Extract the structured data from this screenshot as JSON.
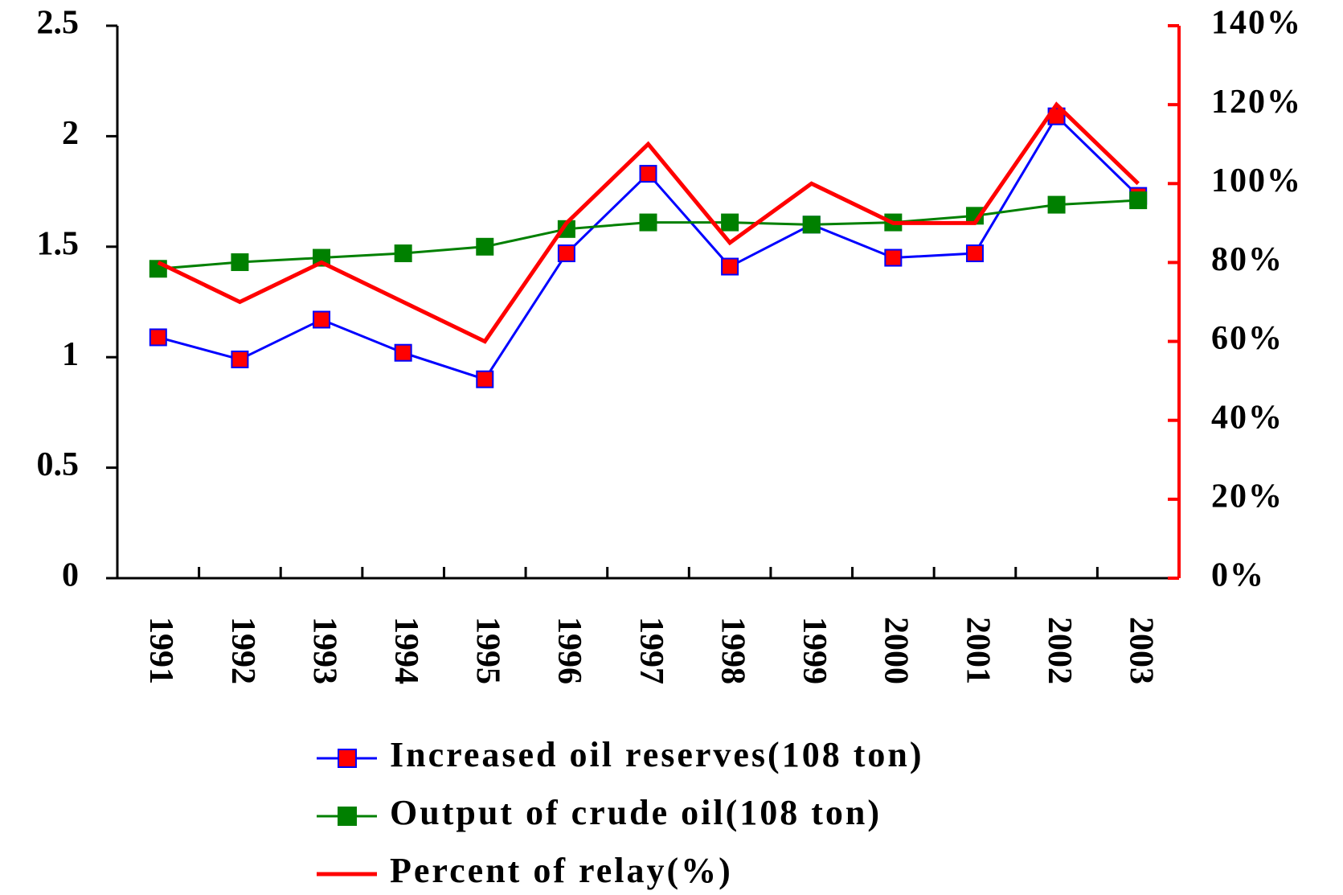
{
  "chart_data": {
    "type": "line",
    "categories": [
      "1991",
      "1992",
      "1993",
      "1994",
      "1995",
      "1996",
      "1997",
      "1998",
      "1999",
      "2000",
      "2001",
      "2002",
      "2003"
    ],
    "series": [
      {
        "name": "Increased oil reserves(108 ton)",
        "color": "#0000ff",
        "marker_color": "#ff0000",
        "values": [
          1.09,
          0.99,
          1.17,
          1.02,
          0.9,
          1.47,
          1.83,
          1.41,
          1.6,
          1.45,
          1.47,
          2.09,
          1.73
        ]
      },
      {
        "name": "Output of crude oil(108 ton)",
        "color": "#008000",
        "marker_color": "#008000",
        "values": [
          1.4,
          1.43,
          1.45,
          1.47,
          1.5,
          1.58,
          1.61,
          1.61,
          1.6,
          1.61,
          1.64,
          1.69,
          1.71
        ]
      },
      {
        "name": "Percent of relay(%)",
        "color": "#ff0000",
        "axis": "y2",
        "values": [
          80,
          70,
          80,
          70,
          60,
          90,
          110,
          85,
          100,
          90,
          90,
          120,
          100
        ]
      }
    ],
    "ylim": [
      0,
      2.5
    ],
    "yticks": [
      0,
      0.5,
      1,
      1.5,
      2,
      2.5
    ],
    "y2lim": [
      0,
      140
    ],
    "y2ticks": [
      {
        "value": 0,
        "label": "0%"
      },
      {
        "value": 20,
        "label": "20%"
      },
      {
        "value": 40,
        "label": "40%"
      },
      {
        "value": 60,
        "label": "60%"
      },
      {
        "value": 80,
        "label": "80%"
      },
      {
        "value": 100,
        "label": "100%"
      },
      {
        "value": 120,
        "label": "120%"
      },
      {
        "value": 140,
        "label": "140%"
      }
    ],
    "y2color": "#ff0000",
    "legend": "bottom"
  }
}
